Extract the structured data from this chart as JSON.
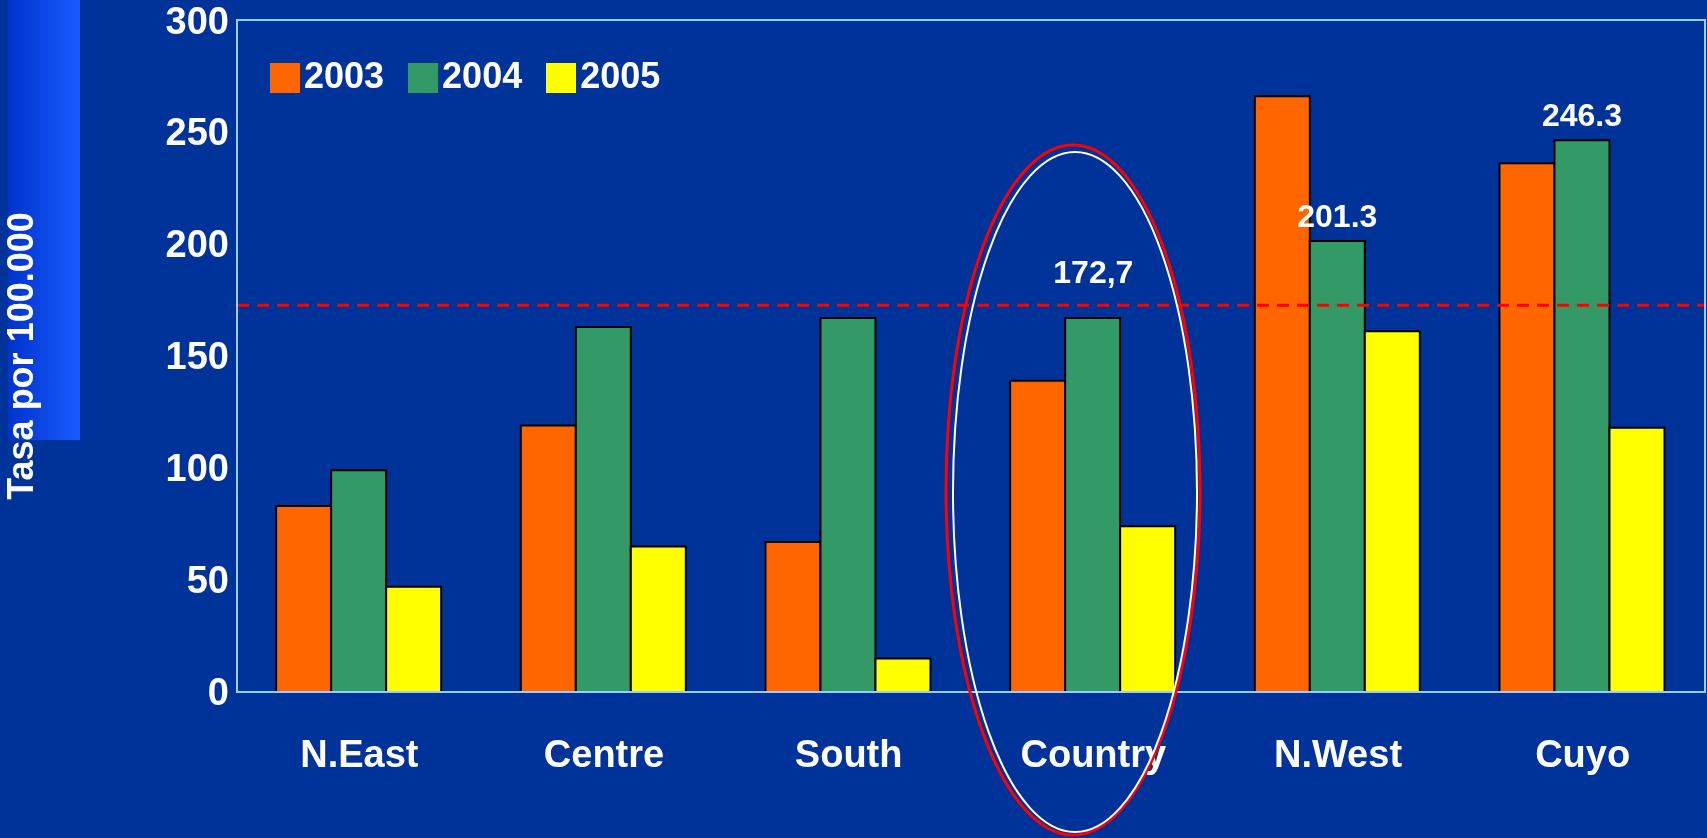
{
  "chart_data": {
    "type": "bar",
    "ylabel": "Tasa por 100.000",
    "categories": [
      "N.East",
      "Centre",
      "South",
      "Country",
      "N.West",
      "Cuyo"
    ],
    "series": [
      {
        "name": "2003",
        "color": "#ff6600",
        "values": [
          83,
          119,
          67,
          139,
          266,
          236
        ]
      },
      {
        "name": "2004",
        "color": "#339966",
        "values": [
          99,
          163,
          167,
          167,
          201.3,
          246.3
        ],
        "value_labels": [
          null,
          null,
          null,
          null,
          "201.3",
          "246.3"
        ]
      },
      {
        "name": "2005",
        "color": "#ffff00",
        "values": [
          47,
          65,
          15,
          74,
          161,
          118
        ]
      }
    ],
    "ylim": [
      0,
      300
    ],
    "yticks": [
      0,
      50,
      100,
      150,
      200,
      250,
      300
    ],
    "grid": false,
    "legend": "top left",
    "ref_lines": [
      {
        "axis": "y",
        "value": 172.7,
        "color": "#ff0000",
        "line_style": "dashed"
      }
    ],
    "annotations": [
      {
        "text": "172,7",
        "x": "Country",
        "y": 172.7
      }
    ]
  }
}
